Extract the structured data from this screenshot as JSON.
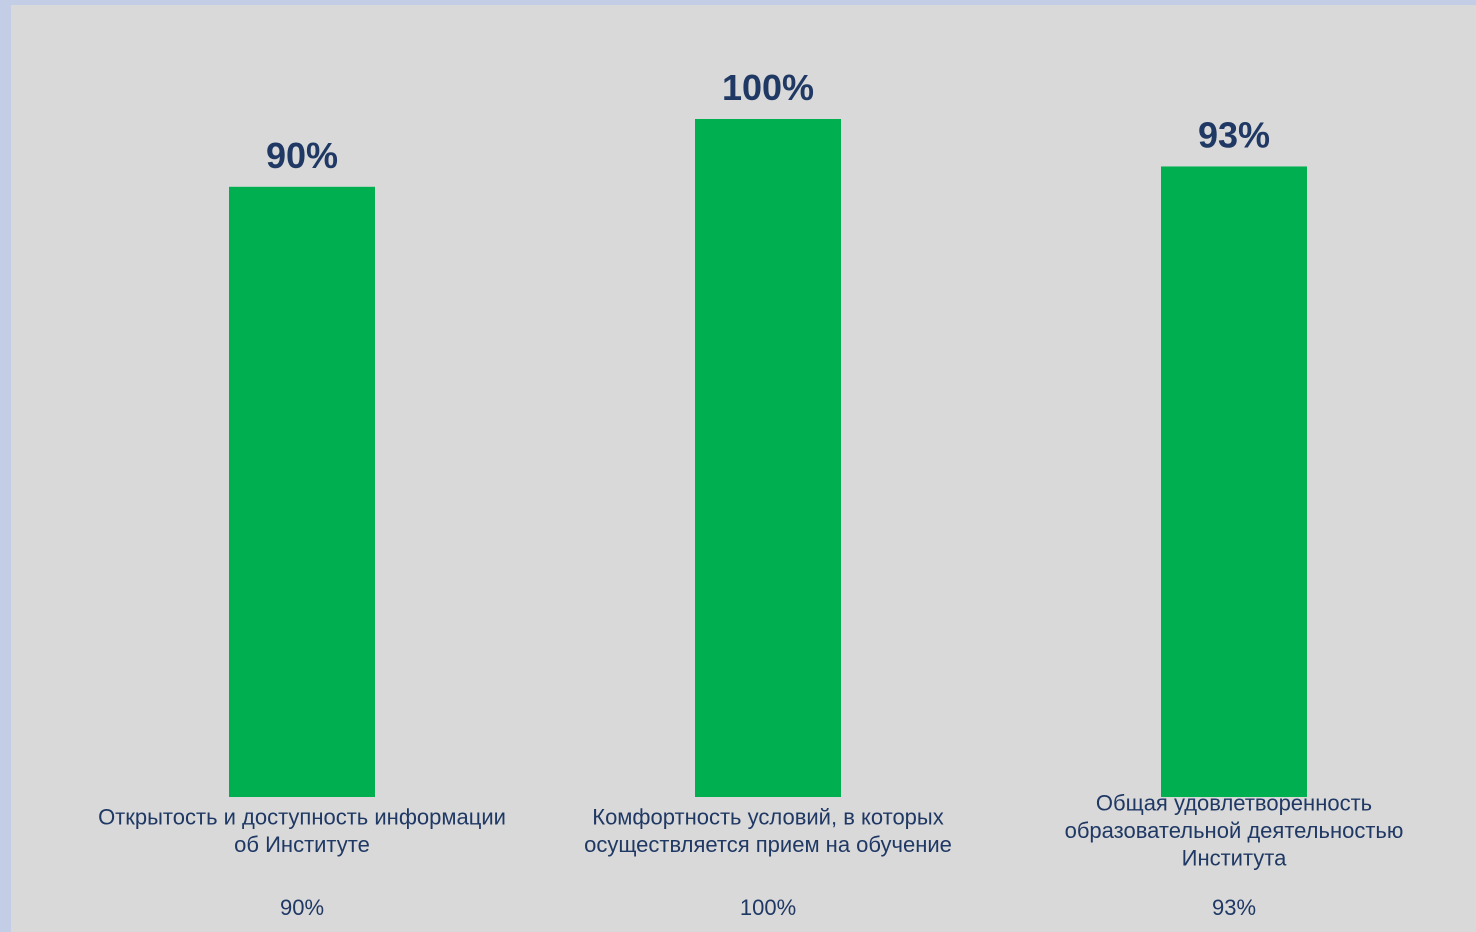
{
  "chart_data": {
    "type": "bar",
    "categories": [
      [
        "Открытость и доступность информации",
        "об Институте"
      ],
      [
        "Комфортность условий, в которых",
        "осуществляется прием на обучение"
      ],
      [
        "Общая удовлетворенность",
        "образовательной деятельностью",
        "Института"
      ]
    ],
    "values": [
      90,
      100,
      93
    ],
    "data_labels": [
      "90%",
      "100%",
      "93%"
    ],
    "table_values": [
      "90%",
      "100%",
      "93%"
    ],
    "ylim": [
      0,
      100
    ],
    "grid": false,
    "legend": "none",
    "colors": {
      "bar": "#00b050",
      "data_label": "#1f3864",
      "category_text": "#1f3864",
      "plot_background": "#d9d9d9",
      "page_background": "#c3cde6"
    }
  }
}
